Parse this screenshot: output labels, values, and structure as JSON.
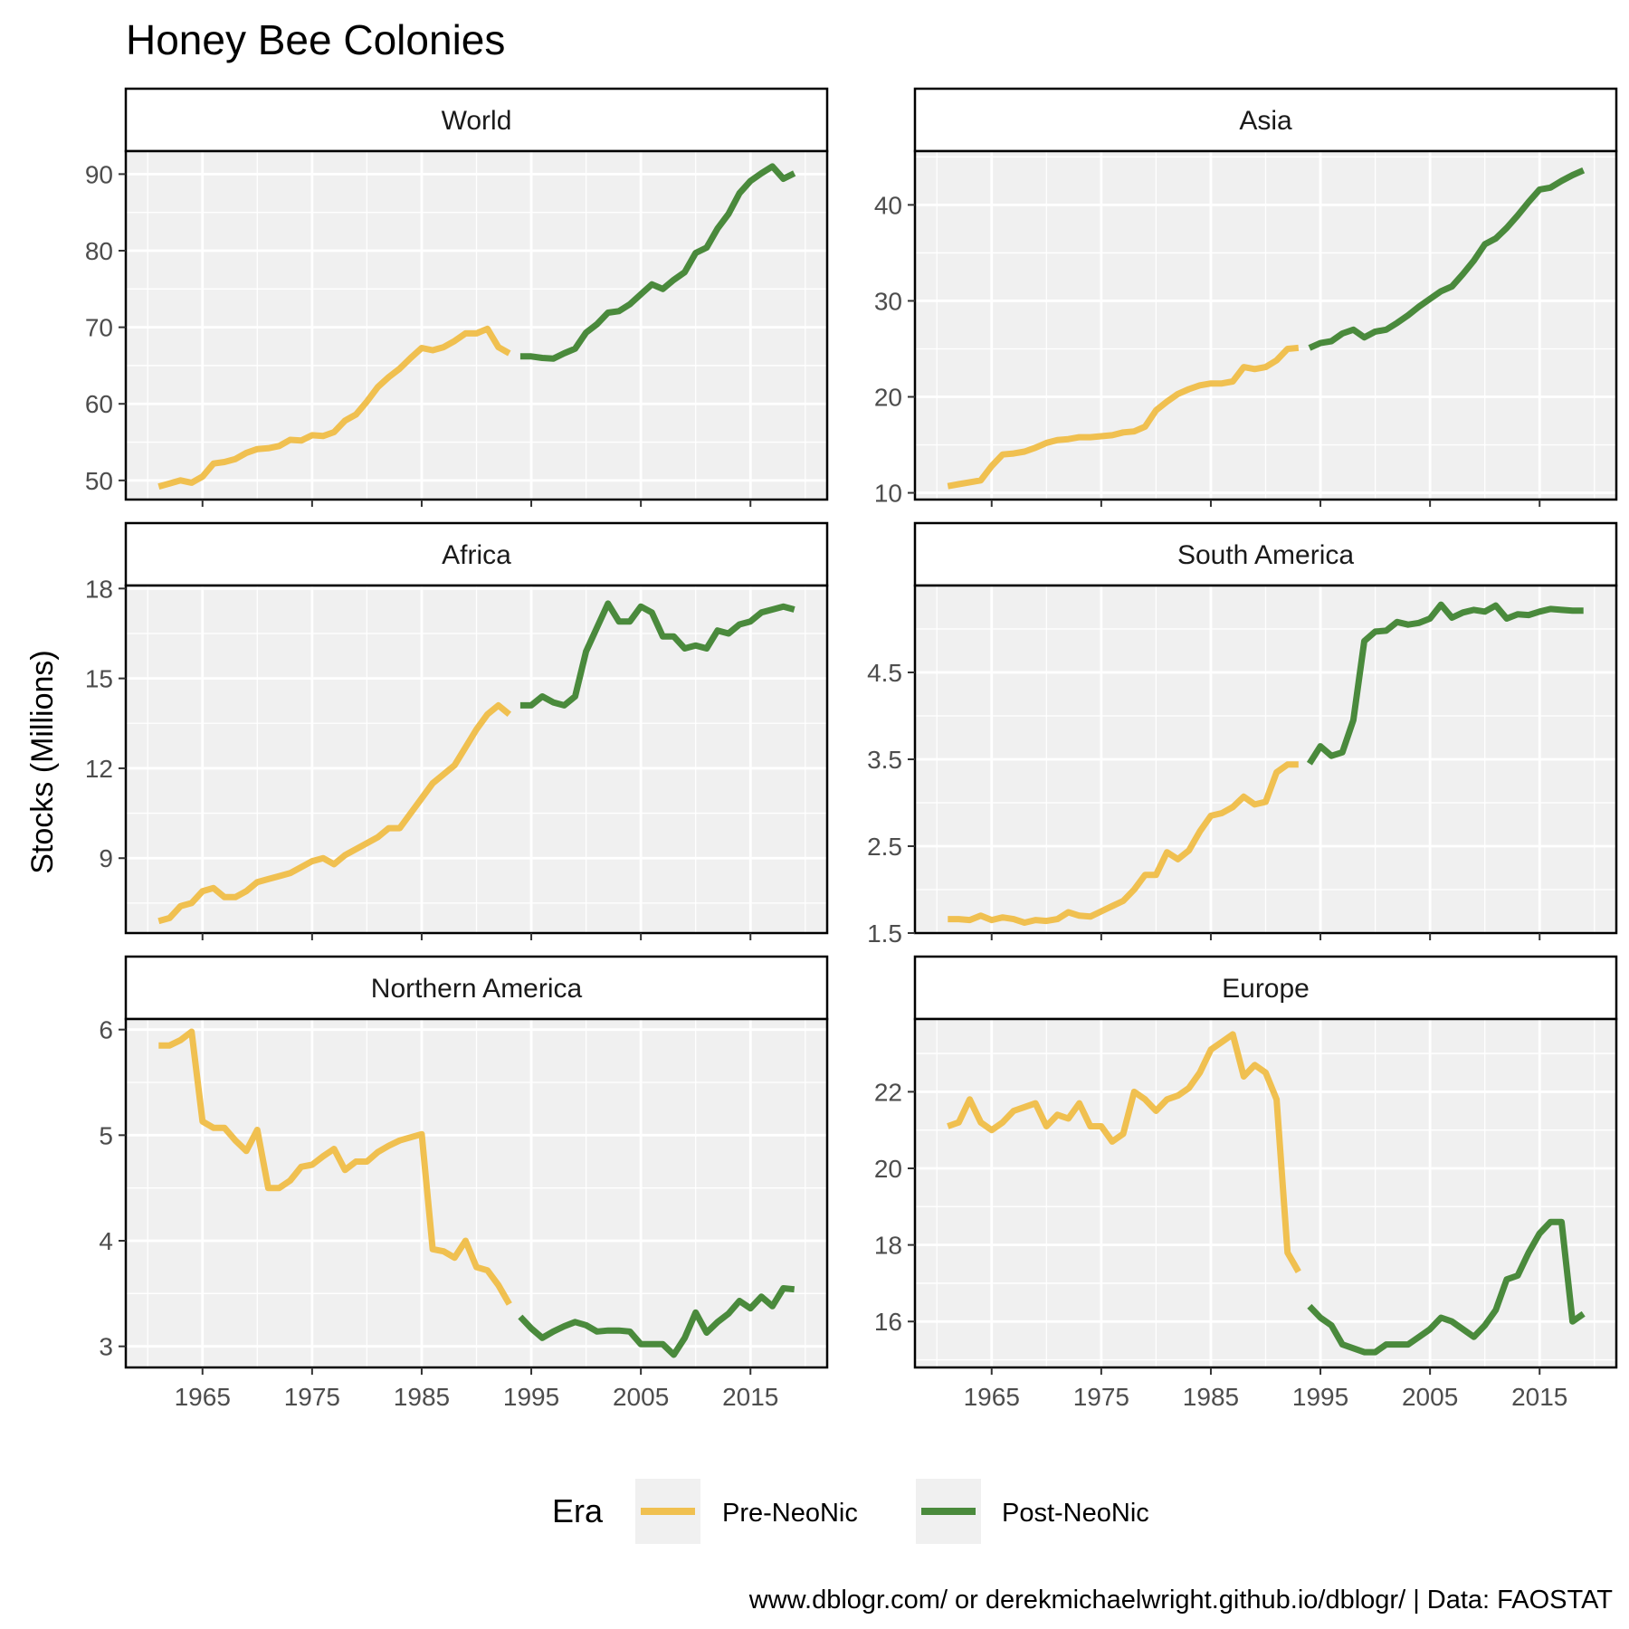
{
  "title": "Honey Bee Colonies",
  "ylabel": "Stocks (Millions)",
  "caption": "www.dblogr.com/ or derekmichaelwright.github.io/dblogr/ | Data: FAOSTAT",
  "legend": {
    "title": "Era",
    "position": "bottom",
    "entries": [
      {
        "label": "Pre-NeoNic",
        "color": "#f0c050"
      },
      {
        "label": "Post-NeoNic",
        "color": "#4a8a3c"
      }
    ]
  },
  "colors": {
    "pre": "#f0c050",
    "post": "#4a8a3c",
    "panel_bg": "#f0f0f0",
    "grid": "#ffffff"
  },
  "chart_data": {
    "type": "line",
    "x_ticks": [
      1965,
      1975,
      1985,
      1995,
      2005,
      2015
    ],
    "xlim": [
      1958,
      2022
    ],
    "grid": true,
    "facets": [
      {
        "name": "World",
        "ylim": [
          47.5,
          93
        ],
        "y_ticks": [
          50,
          60,
          70,
          80,
          90
        ],
        "pre": {
          "x": [
            1961,
            1962,
            1963,
            1964,
            1965,
            1966,
            1967,
            1968,
            1969,
            1970,
            1971,
            1972,
            1973,
            1974,
            1975,
            1976,
            1977,
            1978,
            1979,
            1980,
            1981,
            1982,
            1983,
            1984,
            1985,
            1986,
            1987,
            1988,
            1989,
            1990,
            1991,
            1992,
            1993
          ],
          "y": [
            49.2,
            49.6,
            50.0,
            49.7,
            50.5,
            52.2,
            52.4,
            52.8,
            53.6,
            54.1,
            54.2,
            54.5,
            55.3,
            55.2,
            55.9,
            55.8,
            56.3,
            57.8,
            58.6,
            60.3,
            62.2,
            63.5,
            64.6,
            66.0,
            67.3,
            67.0,
            67.4,
            68.2,
            69.2,
            69.2,
            69.8,
            67.4,
            66.6
          ]
        },
        "post": {
          "x": [
            1994,
            1995,
            1996,
            1997,
            1998,
            1999,
            2000,
            2001,
            2002,
            2003,
            2004,
            2005,
            2006,
            2007,
            2008,
            2009,
            2010,
            2011,
            2012,
            2013,
            2014,
            2015,
            2016,
            2017,
            2018,
            2019
          ],
          "y": [
            66.2,
            66.2,
            66.0,
            65.9,
            66.6,
            67.2,
            69.3,
            70.4,
            71.9,
            72.1,
            73.0,
            74.3,
            75.6,
            75.0,
            76.2,
            77.2,
            79.7,
            80.4,
            82.9,
            84.8,
            87.5,
            89.1,
            90.1,
            91.0,
            89.4,
            90.1
          ]
        }
      },
      {
        "name": "Asia",
        "ylim": [
          9.3,
          45.6
        ],
        "y_ticks": [
          10,
          20,
          30,
          40
        ],
        "pre": {
          "x": [
            1961,
            1962,
            1963,
            1964,
            1965,
            1966,
            1967,
            1968,
            1969,
            1970,
            1971,
            1972,
            1973,
            1974,
            1975,
            1976,
            1977,
            1978,
            1979,
            1980,
            1981,
            1982,
            1983,
            1984,
            1985,
            1986,
            1987,
            1988,
            1989,
            1990,
            1991,
            1992,
            1993
          ],
          "y": [
            10.7,
            10.9,
            11.1,
            11.3,
            12.8,
            14.0,
            14.1,
            14.3,
            14.7,
            15.2,
            15.5,
            15.6,
            15.8,
            15.8,
            15.9,
            16.0,
            16.3,
            16.4,
            16.9,
            18.6,
            19.5,
            20.3,
            20.8,
            21.2,
            21.4,
            21.4,
            21.6,
            23.1,
            22.9,
            23.1,
            23.8,
            25.0,
            25.1
          ]
        },
        "post": {
          "x": [
            1994,
            1995,
            1996,
            1997,
            1998,
            1999,
            2000,
            2001,
            2002,
            2003,
            2004,
            2005,
            2006,
            2007,
            2008,
            2009,
            2010,
            2011,
            2012,
            2013,
            2014,
            2015,
            2016,
            2017,
            2018,
            2019
          ],
          "y": [
            25.1,
            25.6,
            25.8,
            26.6,
            27.0,
            26.2,
            26.8,
            27.0,
            27.7,
            28.5,
            29.4,
            30.2,
            31.0,
            31.5,
            32.8,
            34.2,
            35.9,
            36.5,
            37.6,
            38.9,
            40.3,
            41.6,
            41.8,
            42.5,
            43.1,
            43.6
          ]
        }
      },
      {
        "name": "Africa",
        "ylim": [
          6.5,
          18.1
        ],
        "y_ticks": [
          9,
          12,
          15,
          18
        ],
        "pre": {
          "x": [
            1961,
            1962,
            1963,
            1964,
            1965,
            1966,
            1967,
            1968,
            1969,
            1970,
            1971,
            1972,
            1973,
            1974,
            1975,
            1976,
            1977,
            1978,
            1979,
            1980,
            1981,
            1982,
            1983,
            1984,
            1985,
            1986,
            1987,
            1988,
            1989,
            1990,
            1991,
            1992,
            1993
          ],
          "y": [
            6.9,
            7.0,
            7.4,
            7.5,
            7.9,
            8.0,
            7.7,
            7.7,
            7.9,
            8.2,
            8.3,
            8.4,
            8.5,
            8.7,
            8.9,
            9.0,
            8.8,
            9.1,
            9.3,
            9.5,
            9.7,
            10.0,
            10.0,
            10.5,
            11.0,
            11.5,
            11.8,
            12.1,
            12.7,
            13.3,
            13.8,
            14.1,
            13.8
          ]
        },
        "post": {
          "x": [
            1994,
            1995,
            1996,
            1997,
            1998,
            1999,
            2000,
            2001,
            2002,
            2003,
            2004,
            2005,
            2006,
            2007,
            2008,
            2009,
            2010,
            2011,
            2012,
            2013,
            2014,
            2015,
            2016,
            2017,
            2018,
            2019
          ],
          "y": [
            14.1,
            14.1,
            14.4,
            14.2,
            14.1,
            14.4,
            15.9,
            16.7,
            17.5,
            16.9,
            16.9,
            17.4,
            17.2,
            16.4,
            16.4,
            16.0,
            16.1,
            16.0,
            16.6,
            16.5,
            16.8,
            16.9,
            17.2,
            17.3,
            17.4,
            17.3
          ]
        }
      },
      {
        "name": "South America",
        "ylim": [
          1.5,
          5.5
        ],
        "y_ticks": [
          1.5,
          2.5,
          3.5,
          4.5
        ],
        "pre": {
          "x": [
            1961,
            1962,
            1963,
            1964,
            1965,
            1966,
            1967,
            1968,
            1969,
            1970,
            1971,
            1972,
            1973,
            1974,
            1975,
            1976,
            1977,
            1978,
            1979,
            1980,
            1981,
            1982,
            1983,
            1984,
            1985,
            1986,
            1987,
            1988,
            1989,
            1990,
            1991,
            1992,
            1993
          ],
          "y": [
            1.66,
            1.66,
            1.65,
            1.7,
            1.65,
            1.68,
            1.66,
            1.62,
            1.65,
            1.64,
            1.66,
            1.74,
            1.7,
            1.69,
            1.75,
            1.81,
            1.87,
            2.0,
            2.17,
            2.17,
            2.43,
            2.35,
            2.45,
            2.67,
            2.85,
            2.88,
            2.95,
            3.07,
            2.98,
            3.01,
            3.35,
            3.44,
            3.44
          ]
        },
        "post": {
          "x": [
            1994,
            1995,
            1996,
            1997,
            1998,
            1999,
            2000,
            2001,
            2002,
            2003,
            2004,
            2005,
            2006,
            2007,
            2008,
            2009,
            2010,
            2011,
            2012,
            2013,
            2014,
            2015,
            2016,
            2017,
            2018,
            2019
          ],
          "y": [
            3.45,
            3.65,
            3.54,
            3.58,
            3.95,
            4.86,
            4.97,
            4.98,
            5.08,
            5.05,
            5.07,
            5.12,
            5.28,
            5.13,
            5.19,
            5.22,
            5.2,
            5.27,
            5.12,
            5.17,
            5.16,
            5.2,
            5.23,
            5.22,
            5.21,
            5.21
          ]
        }
      },
      {
        "name": "Northern America",
        "ylim": [
          2.8,
          6.1
        ],
        "y_ticks": [
          3,
          4,
          5,
          6
        ],
        "pre": {
          "x": [
            1961,
            1962,
            1963,
            1964,
            1965,
            1966,
            1967,
            1968,
            1969,
            1970,
            1971,
            1972,
            1973,
            1974,
            1975,
            1976,
            1977,
            1978,
            1979,
            1980,
            1981,
            1982,
            1983,
            1984,
            1985,
            1986,
            1987,
            1988,
            1989,
            1990,
            1991,
            1992,
            1993
          ],
          "y": [
            5.85,
            5.85,
            5.9,
            5.98,
            5.13,
            5.07,
            5.07,
            4.95,
            4.85,
            5.05,
            4.5,
            4.5,
            4.57,
            4.7,
            4.72,
            4.8,
            4.87,
            4.67,
            4.75,
            4.75,
            4.84,
            4.9,
            4.95,
            4.98,
            5.01,
            3.92,
            3.9,
            3.84,
            4.0,
            3.75,
            3.72,
            3.58,
            3.4
          ]
        },
        "post": {
          "x": [
            1994,
            1995,
            1996,
            1997,
            1998,
            1999,
            2000,
            2001,
            2002,
            2003,
            2004,
            2005,
            2006,
            2007,
            2008,
            2009,
            2010,
            2011,
            2012,
            2013,
            2014,
            2015,
            2016,
            2017,
            2018,
            2019
          ],
          "y": [
            3.28,
            3.17,
            3.08,
            3.14,
            3.19,
            3.23,
            3.2,
            3.14,
            3.15,
            3.15,
            3.14,
            3.02,
            3.02,
            3.02,
            2.92,
            3.08,
            3.32,
            3.13,
            3.23,
            3.31,
            3.43,
            3.36,
            3.47,
            3.38,
            3.55,
            3.54
          ]
        }
      },
      {
        "name": "Europe",
        "ylim": [
          14.8,
          23.9
        ],
        "y_ticks": [
          16,
          18,
          20,
          22
        ],
        "pre": {
          "x": [
            1961,
            1962,
            1963,
            1964,
            1965,
            1966,
            1967,
            1968,
            1969,
            1970,
            1971,
            1972,
            1973,
            1974,
            1975,
            1976,
            1977,
            1978,
            1979,
            1980,
            1981,
            1982,
            1983,
            1984,
            1985,
            1986,
            1987,
            1988,
            1989,
            1990,
            1991,
            1992,
            1993
          ],
          "y": [
            21.1,
            21.2,
            21.8,
            21.2,
            21.0,
            21.2,
            21.5,
            21.6,
            21.7,
            21.1,
            21.4,
            21.3,
            21.7,
            21.1,
            21.1,
            20.7,
            20.9,
            22.0,
            21.8,
            21.5,
            21.8,
            21.9,
            22.1,
            22.5,
            23.1,
            23.3,
            23.5,
            22.4,
            22.7,
            22.5,
            21.8,
            17.8,
            17.3
          ]
        },
        "post": {
          "x": [
            1994,
            1995,
            1996,
            1997,
            1998,
            1999,
            2000,
            2001,
            2002,
            2003,
            2004,
            2005,
            2006,
            2007,
            2008,
            2009,
            2010,
            2011,
            2012,
            2013,
            2014,
            2015,
            2016,
            2017,
            2018,
            2019
          ],
          "y": [
            16.4,
            16.1,
            15.9,
            15.4,
            15.3,
            15.2,
            15.2,
            15.4,
            15.4,
            15.4,
            15.6,
            15.8,
            16.1,
            16.0,
            15.8,
            15.6,
            15.9,
            16.3,
            17.1,
            17.2,
            17.8,
            18.3,
            18.6,
            18.6,
            16.0,
            16.2
          ]
        }
      }
    ]
  }
}
